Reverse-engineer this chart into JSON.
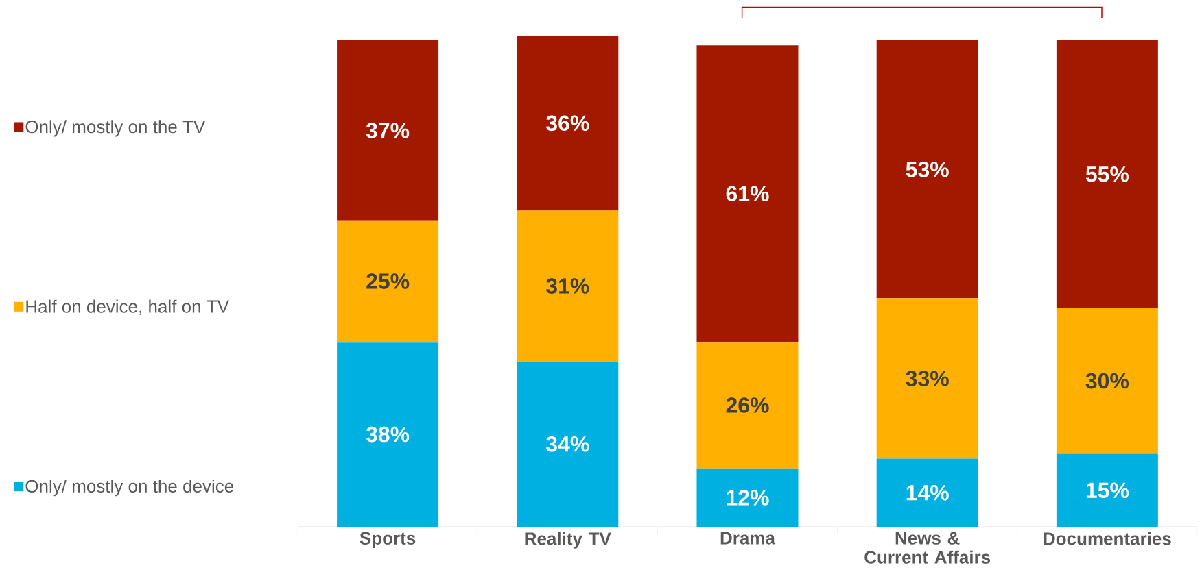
{
  "chart_data": {
    "type": "bar",
    "stacked": true,
    "categories": [
      "Sports",
      "Reality TV",
      "Drama",
      "News & Current Affairs",
      "Documentaries"
    ],
    "series": [
      {
        "name": "Only/ mostly on the device",
        "color": "#00b0e0",
        "values": [
          38,
          34,
          12,
          14,
          15
        ],
        "value_labels": [
          "38%",
          "34%",
          "12%",
          "14%",
          "15%"
        ]
      },
      {
        "name": "Half on device, half on TV",
        "color": "#ffb000",
        "values": [
          25,
          31,
          26,
          33,
          30
        ],
        "value_labels": [
          "25%",
          "31%",
          "26%",
          "33%",
          "30%"
        ]
      },
      {
        "name": "Only/ mostly on the TV",
        "color": "#a31900",
        "values": [
          37,
          36,
          61,
          53,
          55
        ],
        "value_labels": [
          "37%",
          "36%",
          "61%",
          "53%",
          "55%"
        ]
      }
    ],
    "legend": "left"
  }
}
